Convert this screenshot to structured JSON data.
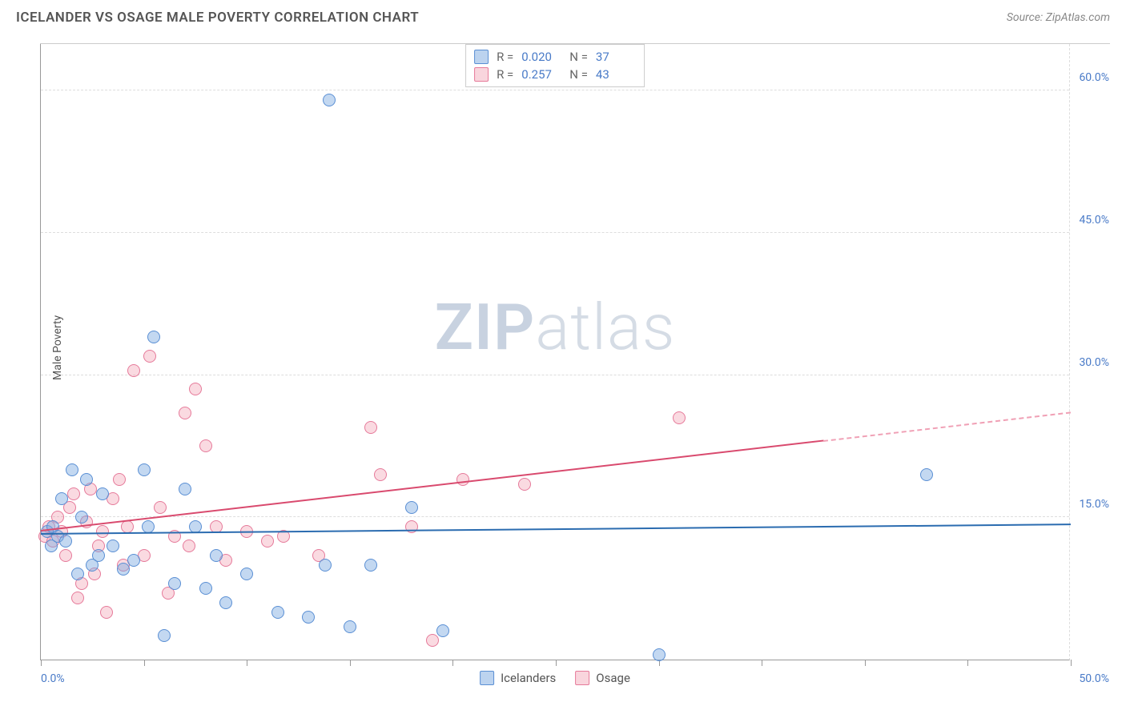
{
  "header": {
    "title": "ICELANDER VS OSAGE MALE POVERTY CORRELATION CHART",
    "source": "Source: ZipAtlas.com"
  },
  "chart": {
    "type": "scatter",
    "ylabel": "Male Poverty",
    "watermark_bold": "ZIP",
    "watermark_light": "atlas",
    "xlim": [
      0,
      50
    ],
    "ylim": [
      0,
      65
    ],
    "xtick_positions": [
      0,
      5,
      10,
      15,
      20,
      25,
      30,
      35,
      40,
      45,
      50
    ],
    "xtick_labels": {
      "0": "0.0%",
      "50": "50.0%"
    },
    "ytick_positions": [
      15,
      30,
      45,
      60
    ],
    "ytick_labels": [
      "15.0%",
      "30.0%",
      "45.0%",
      "60.0%"
    ],
    "background_color": "#ffffff",
    "grid_color": "#dddddd",
    "axis_color": "#999999",
    "label_color": "#555555",
    "tick_label_color": "#4a7bc8",
    "marker_size": 16,
    "series": {
      "icelanders": {
        "label": "Icelanders",
        "fill_color": "rgba(122,168,224,0.45)",
        "stroke_color": "#5a8fd4",
        "R": "0.020",
        "N": "37",
        "trend": {
          "x1": 0,
          "y1": 13.2,
          "x2": 50,
          "y2": 14.2,
          "color": "#2b6cb0"
        },
        "points": [
          [
            0.3,
            13.5
          ],
          [
            0.5,
            12
          ],
          [
            0.6,
            14
          ],
          [
            0.8,
            13
          ],
          [
            1,
            17
          ],
          [
            1.2,
            12.5
          ],
          [
            1.5,
            20
          ],
          [
            1.8,
            9
          ],
          [
            2,
            15
          ],
          [
            2.2,
            19
          ],
          [
            2.5,
            10
          ],
          [
            2.8,
            11
          ],
          [
            3,
            17.5
          ],
          [
            3.5,
            12
          ],
          [
            4,
            9.5
          ],
          [
            4.5,
            10.5
          ],
          [
            5,
            20
          ],
          [
            5.2,
            14
          ],
          [
            5.5,
            34
          ],
          [
            6,
            2.5
          ],
          [
            6.5,
            8
          ],
          [
            7,
            18
          ],
          [
            7.5,
            14
          ],
          [
            8,
            7.5
          ],
          [
            8.5,
            11
          ],
          [
            9,
            6
          ],
          [
            10,
            9
          ],
          [
            11.5,
            5
          ],
          [
            13,
            4.5
          ],
          [
            13.8,
            10
          ],
          [
            15,
            3.5
          ],
          [
            16,
            10
          ],
          [
            18,
            16
          ],
          [
            19.5,
            3
          ],
          [
            14,
            59
          ],
          [
            30,
            0.5
          ],
          [
            43,
            19.5
          ]
        ]
      },
      "osage": {
        "label": "Osage",
        "fill_color": "rgba(240,150,170,0.35)",
        "stroke_color": "#e67a9a",
        "R": "0.257",
        "N": "43",
        "trend": {
          "x1": 0,
          "y1": 13.5,
          "x2": 38,
          "y2": 23,
          "color": "#d94a6e"
        },
        "trend_ext": {
          "x1": 38,
          "y1": 23,
          "x2": 50,
          "y2": 26,
          "color": "#f0a0b5"
        },
        "points": [
          [
            0.2,
            13
          ],
          [
            0.4,
            14
          ],
          [
            0.6,
            12.5
          ],
          [
            0.8,
            15
          ],
          [
            1,
            13.5
          ],
          [
            1.2,
            11
          ],
          [
            1.4,
            16
          ],
          [
            1.6,
            17.5
          ],
          [
            1.8,
            6.5
          ],
          [
            2,
            8
          ],
          [
            2.2,
            14.5
          ],
          [
            2.4,
            18
          ],
          [
            2.6,
            9
          ],
          [
            2.8,
            12
          ],
          [
            3,
            13.5
          ],
          [
            3.2,
            5
          ],
          [
            3.5,
            17
          ],
          [
            3.8,
            19
          ],
          [
            4,
            10
          ],
          [
            4.2,
            14
          ],
          [
            4.5,
            30.5
          ],
          [
            5,
            11
          ],
          [
            5.3,
            32
          ],
          [
            5.8,
            16
          ],
          [
            6.2,
            7
          ],
          [
            6.5,
            13
          ],
          [
            7,
            26
          ],
          [
            7.2,
            12
          ],
          [
            7.5,
            28.5
          ],
          [
            8,
            22.5
          ],
          [
            8.5,
            14
          ],
          [
            9,
            10.5
          ],
          [
            10,
            13.5
          ],
          [
            11,
            12.5
          ],
          [
            11.8,
            13
          ],
          [
            13.5,
            11
          ],
          [
            16,
            24.5
          ],
          [
            16.5,
            19.5
          ],
          [
            18,
            14
          ],
          [
            19,
            2
          ],
          [
            20.5,
            19
          ],
          [
            23.5,
            18.5
          ],
          [
            31,
            25.5
          ]
        ]
      }
    }
  }
}
